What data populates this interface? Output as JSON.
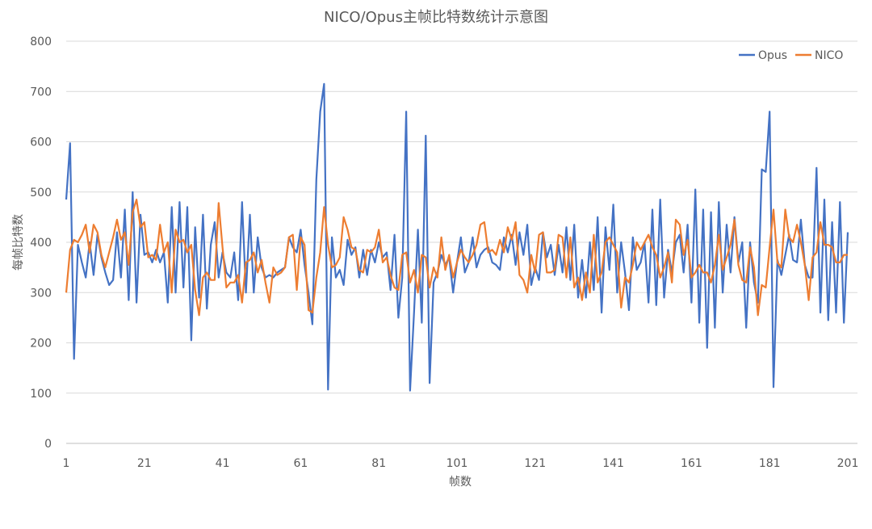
{
  "chart_data": {
    "type": "line",
    "title": "NICO/Opus主帧比特数统计示意图",
    "xlabel": "帧数",
    "ylabel": "每帧比特数",
    "ylim": [
      0,
      800
    ],
    "yticks": [
      0,
      100,
      200,
      300,
      400,
      500,
      600,
      700,
      800
    ],
    "xticks": [
      1,
      21,
      41,
      61,
      81,
      101,
      121,
      141,
      161,
      181,
      201
    ],
    "x_start": 1,
    "grid": true,
    "legend": "top-right",
    "series": [
      {
        "name": "Opus",
        "color": "#4472c4",
        "values": [
          485,
          597,
          168,
          395,
          360,
          330,
          400,
          335,
          415,
          370,
          340,
          315,
          325,
          420,
          330,
          465,
          285,
          500,
          280,
          455,
          375,
          380,
          360,
          385,
          360,
          380,
          280,
          470,
          300,
          480,
          310,
          470,
          205,
          430,
          290,
          455,
          268,
          395,
          440,
          330,
          380,
          340,
          330,
          380,
          285,
          480,
          300,
          455,
          300,
          410,
          350,
          330,
          335,
          330,
          340,
          345,
          350,
          410,
          390,
          380,
          425,
          355,
          300,
          237,
          525,
          660,
          715,
          107,
          410,
          330,
          345,
          315,
          405,
          375,
          390,
          330,
          385,
          335,
          385,
          360,
          400,
          370,
          380,
          305,
          415,
          250,
          330,
          660,
          105,
          260,
          425,
          240,
          612,
          120,
          320,
          340,
          375,
          355,
          370,
          300,
          360,
          410,
          340,
          360,
          410,
          350,
          375,
          385,
          390,
          360,
          355,
          345,
          410,
          380,
          415,
          355,
          420,
          375,
          435,
          315,
          350,
          325,
          420,
          370,
          395,
          335,
          395,
          340,
          430,
          325,
          435,
          290,
          365,
          290,
          400,
          305,
          450,
          260,
          430,
          345,
          475,
          300,
          400,
          340,
          265,
          410,
          345,
          360,
          400,
          280,
          465,
          275,
          485,
          290,
          385,
          340,
          400,
          415,
          340,
          435,
          280,
          505,
          240,
          465,
          190,
          460,
          230,
          480,
          300,
          435,
          340,
          450,
          360,
          400,
          230,
          400,
          320,
          280,
          545,
          540,
          660,
          112,
          365,
          335,
          375,
          415,
          365,
          360,
          445,
          355,
          330,
          330,
          548,
          260,
          485,
          245,
          440,
          260,
          480,
          240,
          420
        ]
      },
      {
        "name": "NICO",
        "color": "#ed7d31",
        "values": [
          300,
          385,
          405,
          400,
          415,
          435,
          380,
          435,
          420,
          375,
          350,
          380,
          410,
          445,
          405,
          420,
          355,
          460,
          485,
          430,
          440,
          370,
          375,
          365,
          435,
          380,
          400,
          300,
          425,
          400,
          405,
          380,
          395,
          305,
          255,
          330,
          340,
          325,
          325,
          478,
          390,
          310,
          320,
          320,
          335,
          280,
          360,
          365,
          380,
          340,
          365,
          320,
          280,
          350,
          335,
          340,
          350,
          410,
          415,
          305,
          410,
          395,
          265,
          260,
          330,
          380,
          470,
          395,
          350,
          355,
          370,
          450,
          425,
          390,
          385,
          345,
          340,
          385,
          380,
          390,
          425,
          360,
          370,
          335,
          310,
          305,
          375,
          380,
          320,
          345,
          300,
          375,
          370,
          310,
          350,
          330,
          410,
          345,
          375,
          330,
          360,
          385,
          370,
          360,
          375,
          395,
          435,
          440,
          380,
          385,
          375,
          405,
          380,
          430,
          405,
          440,
          335,
          325,
          300,
          375,
          340,
          415,
          420,
          340,
          340,
          345,
          415,
          410,
          330,
          410,
          310,
          330,
          285,
          340,
          300,
          415,
          320,
          340,
          400,
          410,
          395,
          380,
          270,
          330,
          320,
          355,
          400,
          385,
          400,
          415,
          390,
          375,
          330,
          350,
          380,
          320,
          445,
          435,
          375,
          405,
          330,
          340,
          355,
          340,
          340,
          320,
          355,
          415,
          345,
          370,
          395,
          445,
          355,
          325,
          320,
          390,
          350,
          255,
          315,
          310,
          390,
          465,
          360,
          350,
          465,
          410,
          400,
          435,
          400,
          355,
          285,
          370,
          380,
          440,
          395,
          395,
          390,
          360,
          360,
          375,
          375
        ]
      }
    ]
  }
}
